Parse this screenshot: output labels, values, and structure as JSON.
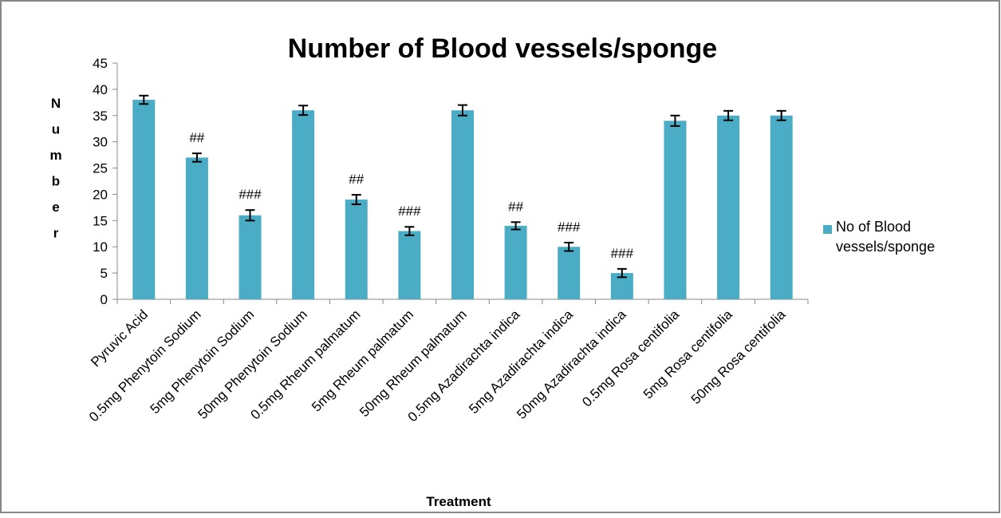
{
  "chart_data": {
    "type": "bar",
    "title": "Number of Blood vessels/sponge",
    "x_label": "Treatment",
    "y_label": "Number",
    "categories": [
      "Pyruvic Acid",
      "0.5mg Phenytoin Sodium",
      "5mg Phenytoin Sodium",
      "50mg Phenytoin Sodium",
      "0.5mg Rheum palmatum",
      "5mg Rheum palmatum",
      "50mg Rheum palmatum",
      "0.5mg Azadirachta indica",
      "5mg Azadirachta indica",
      "50mg Azadirachta indica",
      "0.5mg Rosa centifolia",
      "5mg Rosa centifolia",
      "50mg Rosa centifolia"
    ],
    "series": [
      {
        "name": "No of Blood vessels/sponge",
        "color": "#4bacc6",
        "values": [
          38,
          27,
          16,
          36,
          19,
          13,
          36,
          14,
          10,
          5,
          34,
          35,
          35
        ],
        "errors": [
          0.8,
          0.8,
          1,
          0.9,
          0.9,
          0.8,
          1,
          0.7,
          0.8,
          0.8,
          1,
          0.9,
          0.9
        ]
      }
    ],
    "annotations": [
      null,
      "##",
      "###",
      null,
      "##",
      "###",
      null,
      "##",
      "###",
      "###",
      null,
      null,
      null
    ],
    "ylim": [
      0,
      45
    ],
    "yticks": [
      0,
      5,
      10,
      15,
      20,
      25,
      30,
      35,
      40,
      45
    ],
    "grid": false,
    "legend": "right"
  }
}
